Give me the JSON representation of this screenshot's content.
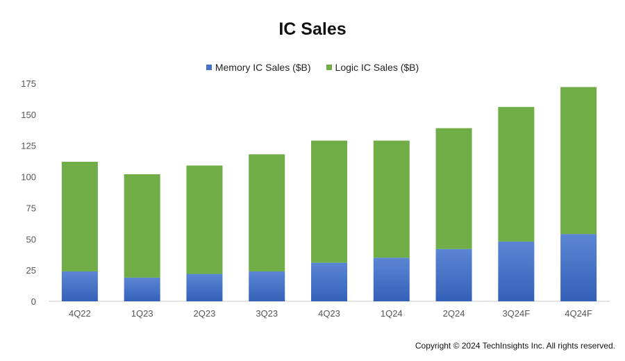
{
  "chart_data": {
    "type": "bar",
    "stacked": true,
    "title": "IC Sales",
    "categories": [
      "4Q22",
      "1Q23",
      "2Q23",
      "3Q23",
      "4Q23",
      "1Q24",
      "2Q24",
      "3Q24F",
      "4Q24F"
    ],
    "series": [
      {
        "name": "Memory IC Sales ($B)",
        "color": "#4472c4",
        "values": [
          24,
          19,
          22,
          24,
          31,
          35,
          42,
          48,
          54
        ]
      },
      {
        "name": "Logic IC Sales ($B)",
        "color": "#70ad47",
        "values": [
          88,
          83,
          87,
          94,
          98,
          94,
          97,
          108,
          118
        ]
      }
    ],
    "ylim": [
      0,
      175
    ],
    "yticks": [
      0,
      25,
      50,
      75,
      100,
      125,
      150,
      175
    ],
    "grid": false,
    "legend_position": "top"
  },
  "footer": {
    "copyright": "Copyright © 2024 TechInsights Inc.  All rights reserved."
  }
}
